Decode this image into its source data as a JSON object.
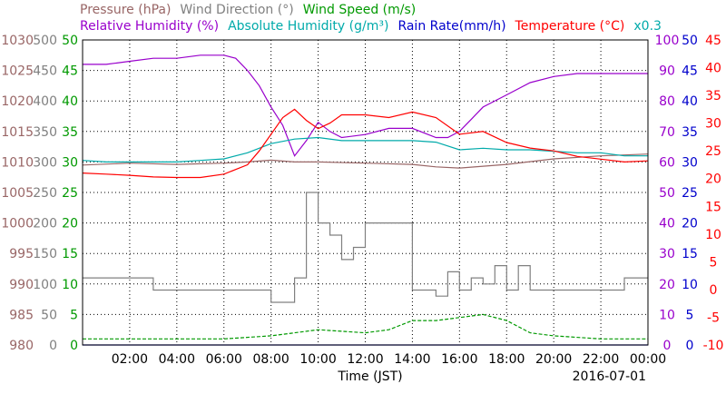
{
  "legend": {
    "row1": [
      {
        "text": "Pressure (hPa)",
        "color": "#996666"
      },
      {
        "text": "Wind Direction (°)",
        "color": "#808080"
      },
      {
        "text": "Wind Speed (m/s)",
        "color": "#009900"
      }
    ],
    "row2": [
      {
        "text": "Relative Humidity (%)",
        "color": "#9900cc"
      },
      {
        "text": "Absolute Humidity (g/m³)",
        "color": "#00aaaa"
      },
      {
        "text": "Rain Rate(mm/h)",
        "color": "#0000cc"
      },
      {
        "text": "Temperature (°C)",
        "color": "#ff0000"
      },
      {
        "text": "x0.3",
        "color": "#00aaaa"
      }
    ]
  },
  "xlabel": "Time (JST)",
  "date": "2016-07-01",
  "chart_data": {
    "type": "line",
    "x_ticks": [
      "02:00",
      "04:00",
      "06:00",
      "08:00",
      "10:00",
      "12:00",
      "14:00",
      "16:00",
      "18:00",
      "20:00",
      "22:00",
      "00:00"
    ],
    "xlim_hours": [
      0,
      24
    ],
    "axes": {
      "pressure": {
        "ticks": [
          "1030",
          "1025",
          "1020",
          "1015",
          "1010",
          "1005",
          "1000",
          "995",
          "990",
          "985",
          "980"
        ],
        "range": [
          980,
          1030
        ],
        "color": "#996666"
      },
      "wind_direction": {
        "ticks": [
          "500",
          "450",
          "400",
          "350",
          "300",
          "250",
          "200",
          "150",
          "100",
          "50",
          "0"
        ],
        "range": [
          0,
          500
        ],
        "color": "#808080"
      },
      "wind_speed": {
        "ticks": [
          "50",
          "45",
          "40",
          "35",
          "30",
          "25",
          "20",
          "15",
          "10",
          "5",
          "0"
        ],
        "range": [
          0,
          50
        ],
        "color": "#009900"
      },
      "relative_humidity": {
        "ticks": [
          "100",
          "90",
          "80",
          "70",
          "60",
          "50",
          "40",
          "30",
          "20",
          "10",
          "0"
        ],
        "range": [
          0,
          100
        ],
        "color": "#9900cc"
      },
      "rain_rate": {
        "ticks": [
          "50",
          "45",
          "40",
          "35",
          "30",
          "25",
          "20",
          "15",
          "10",
          "5",
          "0"
        ],
        "range": [
          0,
          50
        ],
        "color": "#0000cc"
      },
      "temperature": {
        "ticks": [
          "45",
          "40",
          "35",
          "30",
          "25",
          "20",
          "15",
          "10",
          "5",
          "0",
          "-5",
          "-10"
        ],
        "range": [
          -10,
          45
        ],
        "color": "#ff0000"
      }
    },
    "series": [
      {
        "name": "Pressure (hPa)",
        "color": "#996666",
        "x": [
          0,
          2,
          4,
          6,
          7,
          8,
          9,
          10,
          12,
          14,
          15,
          16,
          18,
          20,
          22,
          24
        ],
        "y": [
          1009.5,
          1009.8,
          1009.6,
          1009.8,
          1010.0,
          1010.3,
          1010.0,
          1010.0,
          1009.8,
          1009.6,
          1009.2,
          1009.0,
          1009.6,
          1010.5,
          1011.0,
          1011.3
        ]
      },
      {
        "name": "Wind Direction (°)",
        "color": "#808080",
        "x": [
          0,
          1.5,
          3,
          5,
          7.5,
          8,
          8.4,
          9,
          9.5,
          10,
          10.5,
          11,
          11.5,
          12,
          13.5,
          14,
          14.5,
          15,
          15.5,
          16,
          16.5,
          17,
          17.5,
          18,
          18.5,
          19,
          20,
          21,
          23,
          24
        ],
        "y": [
          110,
          110,
          90,
          90,
          90,
          70,
          70,
          110,
          250,
          200,
          180,
          140,
          160,
          200,
          200,
          90,
          90,
          80,
          120,
          90,
          110,
          100,
          130,
          90,
          130,
          90,
          90,
          90,
          110,
          110
        ]
      },
      {
        "name": "Wind Speed (m/s)",
        "color": "#009900",
        "x": [
          0,
          2,
          4,
          6,
          8,
          9,
          10,
          12,
          13,
          14,
          15,
          16,
          17,
          18,
          19,
          20,
          22,
          24
        ],
        "y": [
          1,
          1,
          1,
          1,
          1.5,
          2,
          2.5,
          2,
          2.5,
          4,
          4,
          4.5,
          5,
          4,
          2,
          1.5,
          1,
          1
        ]
      },
      {
        "name": "Relative Humidity (%)",
        "color": "#9900cc",
        "x": [
          0,
          1,
          2,
          3,
          4,
          5,
          6,
          6.5,
          7,
          7.5,
          8,
          8.5,
          9,
          9.5,
          10,
          10.5,
          11,
          12,
          13,
          14,
          15,
          15.5,
          16,
          16.5,
          17,
          18,
          19,
          20,
          21,
          22,
          23,
          24
        ],
        "y": [
          92,
          92,
          93,
          94,
          94,
          95,
          95,
          94,
          90,
          85,
          78,
          72,
          62,
          67,
          73,
          70,
          68,
          69,
          71,
          71,
          68,
          68,
          70,
          74,
          78,
          82,
          86,
          88,
          89,
          89,
          89,
          89
        ]
      },
      {
        "name": "Absolute Humidity (g/m³)",
        "color": "#00aaaa",
        "x": [
          0,
          1,
          2,
          3,
          4,
          5,
          6,
          7,
          8,
          9,
          10,
          11,
          12,
          13,
          14,
          15,
          16,
          17,
          18,
          19,
          20,
          21,
          22,
          23,
          24
        ],
        "y": [
          60.5,
          60,
          60,
          60,
          60,
          60.5,
          61,
          63,
          66,
          67.5,
          68,
          67,
          67,
          67,
          67,
          66.5,
          64,
          64.5,
          64,
          64,
          63.5,
          63,
          63,
          62,
          62
        ]
      },
      {
        "name": "Rain Rate(mm/h)",
        "color": "#0000cc",
        "x": [
          0,
          24
        ],
        "y": [
          0,
          0
        ]
      },
      {
        "name": "Temperature (°C)",
        "color": "#ff0000",
        "x": [
          0,
          1,
          2,
          3,
          4,
          5,
          6,
          7,
          7.5,
          8,
          8.5,
          9,
          9.5,
          10,
          10.5,
          11,
          12,
          13,
          14,
          15,
          16,
          17,
          18,
          19,
          20,
          21,
          22,
          23,
          24
        ],
        "y": [
          21,
          20.8,
          20.6,
          20.3,
          20.2,
          20.2,
          20.8,
          22.5,
          25,
          28,
          31,
          32.5,
          30.5,
          29,
          30,
          31.5,
          31.5,
          31,
          32,
          31,
          28,
          28.5,
          26.5,
          25.5,
          25,
          24,
          23.5,
          23,
          23.2
        ]
      }
    ]
  }
}
